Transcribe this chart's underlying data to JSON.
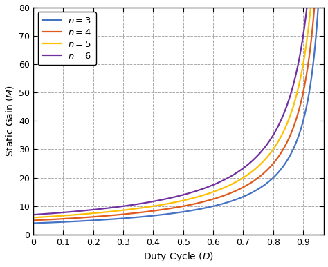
{
  "xlabel": "Duty Cycle ($D$)",
  "ylabel": "Static Gain ($M$)",
  "xlim": [
    0,
    0.97
  ],
  "ylim": [
    0,
    80
  ],
  "xticks": [
    0,
    0.1,
    0.2,
    0.3,
    0.4,
    0.5,
    0.6,
    0.7,
    0.8,
    0.9
  ],
  "yticks": [
    0,
    10,
    20,
    30,
    40,
    50,
    60,
    70,
    80
  ],
  "series": [
    {
      "n": 3,
      "color": "#4472C4",
      "label": "$n = 3$"
    },
    {
      "n": 4,
      "color": "#E05A1A",
      "label": "$n = 4$"
    },
    {
      "n": 5,
      "color": "#FFC000",
      "label": "$n = 5$"
    },
    {
      "n": 6,
      "color": "#7030A0",
      "label": "$n = 6$"
    }
  ],
  "grid_color": "#AAAAAA",
  "bg_color": "#FFFFFF",
  "legend_loc": "upper left",
  "d_max": 0.965
}
